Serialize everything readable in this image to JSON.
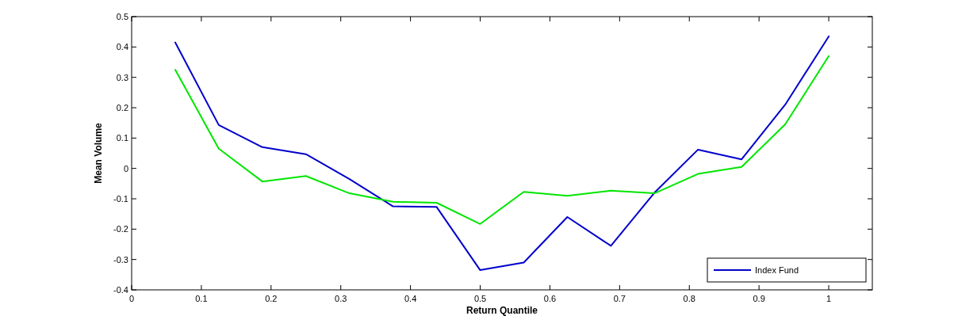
{
  "chart_data": {
    "type": "line",
    "xlabel": "Return Quantile",
    "ylabel": "Mean Volume",
    "xlim": [
      0,
      1.0625
    ],
    "xticks": [
      0,
      0.1,
      0.2,
      0.3,
      0.4,
      0.5,
      0.6,
      0.7,
      0.8,
      0.9,
      1
    ],
    "ylim": [
      -0.4,
      0.5
    ],
    "yticks": [
      -0.4,
      -0.3,
      -0.2,
      -0.1,
      0,
      0.1,
      0.2,
      0.3,
      0.4,
      0.5
    ],
    "x": [
      0.0625,
      0.125,
      0.1875,
      0.25,
      0.3125,
      0.375,
      0.4375,
      0.5,
      0.5625,
      0.625,
      0.6875,
      0.75,
      0.8125,
      0.875,
      0.9375,
      1
    ],
    "legend": "bottom right",
    "grid": false,
    "series": [
      {
        "name": "Index Fund",
        "color": "#0000cc",
        "values": [
          0.415,
          0.143,
          0.07,
          0.047,
          -0.035,
          -0.125,
          -0.127,
          -0.335,
          -0.31,
          -0.16,
          -0.255,
          -0.08,
          0.062,
          0.03,
          0.21,
          0.435
        ]
      },
      {
        "color": "#00e600",
        "values": [
          0.325,
          0.065,
          -0.043,
          -0.025,
          -0.082,
          -0.11,
          -0.113,
          -0.183,
          -0.077,
          -0.09,
          -0.073,
          -0.082,
          -0.018,
          0.005,
          0.145,
          0.37
        ]
      }
    ]
  }
}
